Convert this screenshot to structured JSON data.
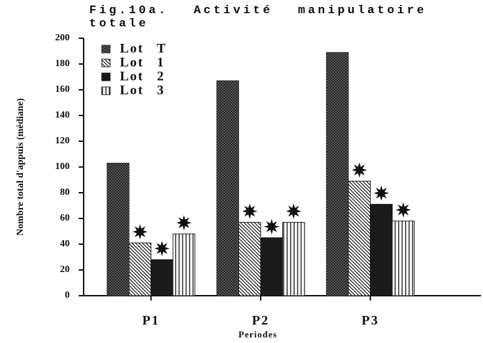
{
  "chart_data": {
    "type": "bar",
    "title": "Fig.10a. Activité manipulatoire totale",
    "y_label": "Nombre total d'appuis (médiane)",
    "x_label": "Periodes",
    "categories": [
      "P1",
      "P2",
      "P3"
    ],
    "series": [
      {
        "name": "Lot T",
        "color": "#333333",
        "pattern": "crosshatch",
        "values": [
          103,
          167,
          189
        ]
      },
      {
        "name": "Lot 1",
        "color": "#222222",
        "pattern": "diagonal",
        "values": [
          41,
          57,
          89
        ]
      },
      {
        "name": "Lot 2",
        "color": "#111111",
        "pattern": "solid",
        "values": [
          28,
          45,
          71
        ]
      },
      {
        "name": "Lot 3",
        "color": "#222222",
        "pattern": "vertical",
        "values": [
          48,
          57,
          58
        ]
      }
    ],
    "ylim": [
      0,
      200
    ],
    "yticks": [
      0,
      20,
      40,
      60,
      80,
      100,
      120,
      140,
      160,
      180,
      200
    ],
    "legend": "top-left"
  }
}
